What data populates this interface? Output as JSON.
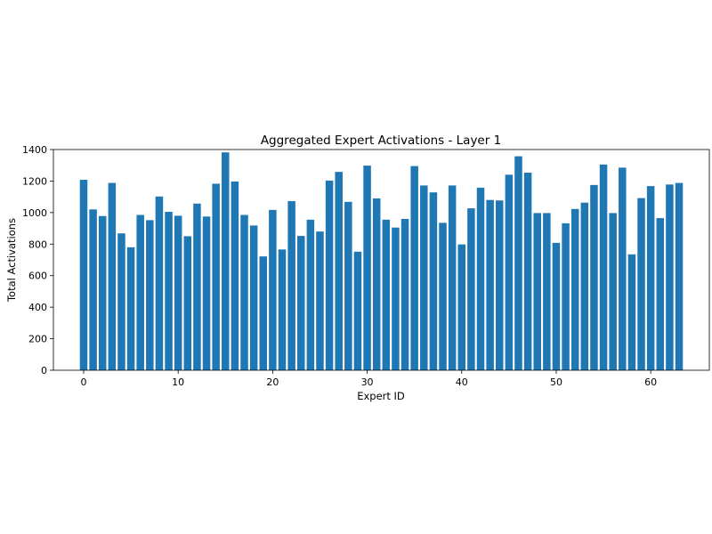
{
  "chart_data": {
    "type": "bar",
    "title": "Aggregated Expert Activations - Layer 1",
    "xlabel": "Expert ID",
    "ylabel": "Total Activations",
    "bar_color": "#1f77b4",
    "xlim": [
      -3.2,
      66.2
    ],
    "ylim": [
      0,
      1400
    ],
    "xticks": [
      0,
      10,
      20,
      30,
      40,
      50,
      60
    ],
    "yticks": [
      0,
      200,
      400,
      600,
      800,
      1000,
      1200,
      1400
    ],
    "grid": false,
    "categories": [
      0,
      1,
      2,
      3,
      4,
      5,
      6,
      7,
      8,
      9,
      10,
      11,
      12,
      13,
      14,
      15,
      16,
      17,
      18,
      19,
      20,
      21,
      22,
      23,
      24,
      25,
      26,
      27,
      28,
      29,
      30,
      31,
      32,
      33,
      34,
      35,
      36,
      37,
      38,
      39,
      40,
      41,
      42,
      43,
      44,
      45,
      46,
      47,
      48,
      49,
      50,
      51,
      52,
      53,
      54,
      55,
      56,
      57,
      58,
      59,
      60,
      61,
      62,
      63
    ],
    "values": [
      1208,
      1020,
      978,
      1188,
      868,
      780,
      985,
      952,
      1102,
      1005,
      980,
      850,
      1057,
      975,
      1183,
      1382,
      1197,
      985,
      918,
      722,
      1017,
      766,
      1073,
      852,
      955,
      880,
      1203,
      1258,
      1068,
      752,
      1298,
      1090,
      955,
      905,
      960,
      1295,
      1172,
      1128,
      935,
      1172,
      798,
      1027,
      1158,
      1080,
      1077,
      1240,
      1357,
      1253,
      997,
      997,
      808,
      932,
      1023,
      1063,
      1175,
      1305,
      997,
      1285,
      735,
      1092,
      1168,
      965,
      1178,
      1188
    ]
  }
}
